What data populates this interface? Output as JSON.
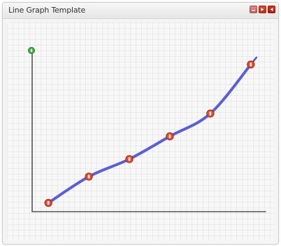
{
  "window": {
    "title": "Line Graph Template"
  },
  "colors": {
    "line": "#4a4fd0",
    "marker_fill": "#e14a2c",
    "marker_highlight": "#ffffff",
    "axis_marker": "#3fa83a",
    "axis": "#555555"
  },
  "icons": {
    "minimize": "minimize-icon",
    "maximize": "maximize-icon",
    "close": "close-icon",
    "axis_origin": "green-node-icon"
  },
  "chart_data": {
    "type": "line",
    "title": "",
    "xlabel": "",
    "ylabel": "",
    "x": [
      1,
      2,
      3,
      4,
      5,
      6
    ],
    "series": [
      {
        "values": [
          0.5,
          2.0,
          3.0,
          4.3,
          5.6,
          8.4
        ]
      }
    ],
    "xlim": [
      0.6,
      6.4
    ],
    "ylim": [
      0,
      10
    ],
    "grid": true,
    "legend": "none"
  }
}
